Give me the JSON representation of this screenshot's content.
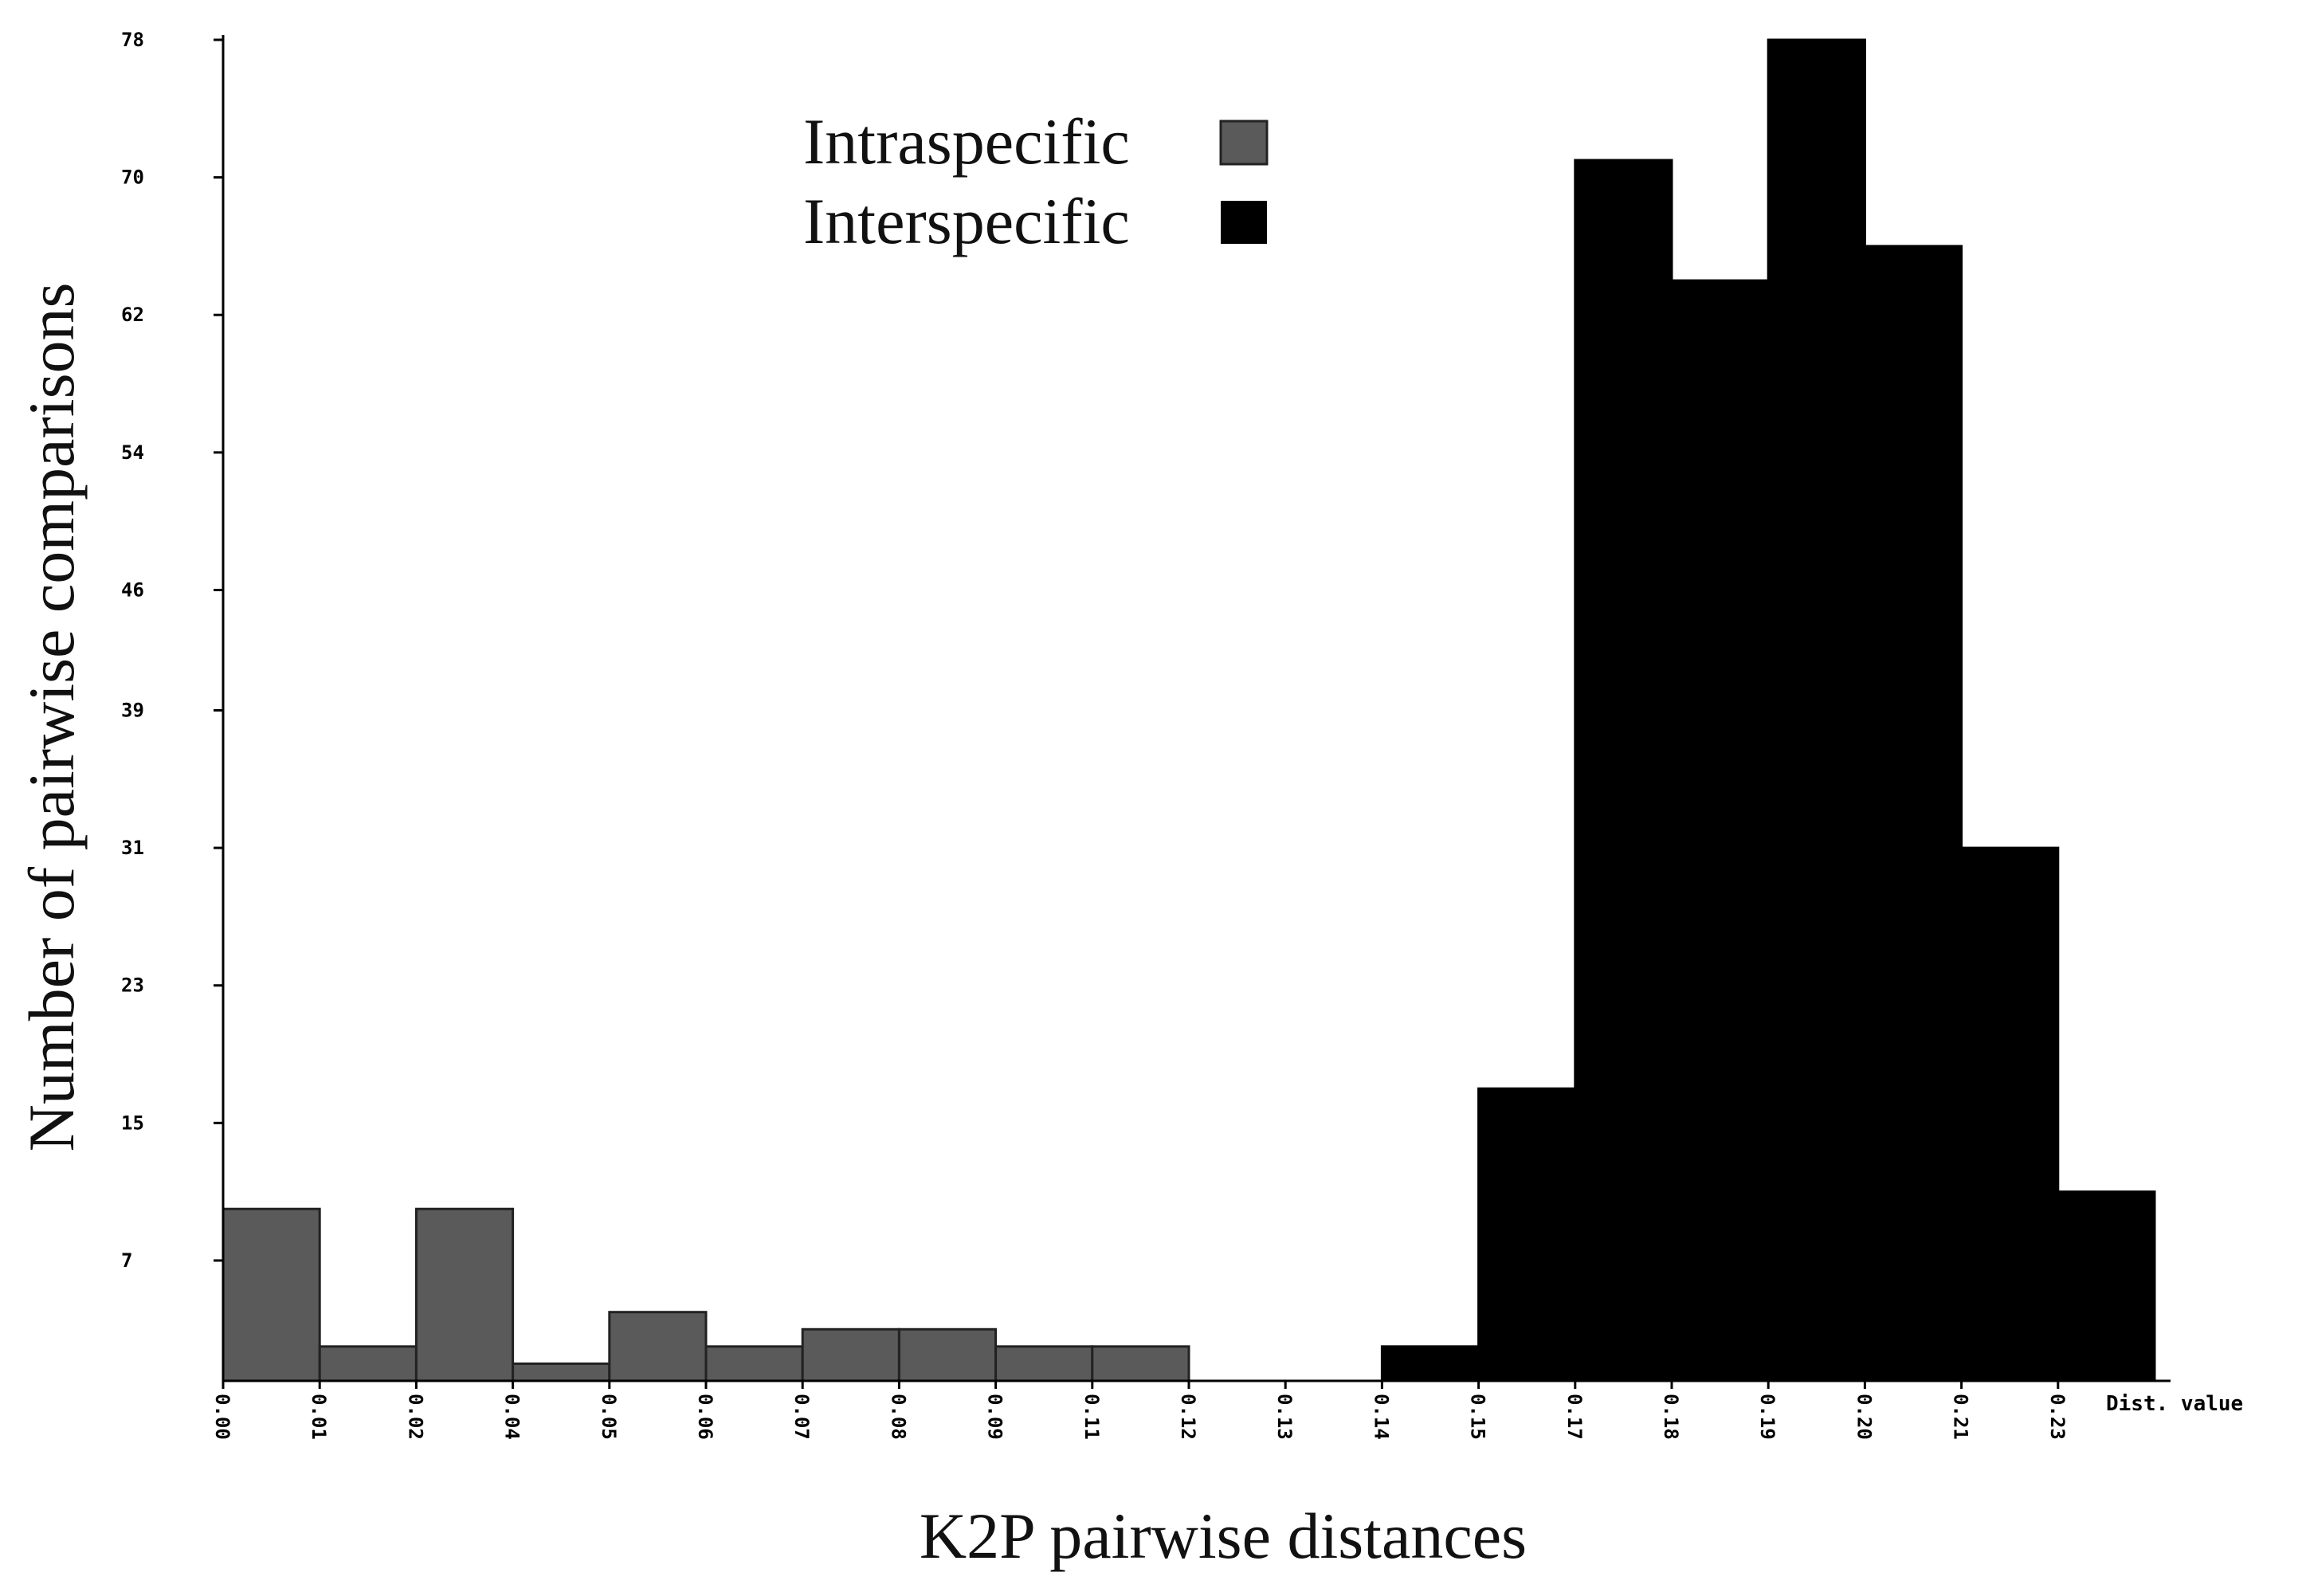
{
  "chart_data": {
    "type": "bar",
    "title": "",
    "xlabel": "K2P pairwise distances",
    "ylabel": "Number of pairwise comparisons",
    "x_unit_label": "Dist. value",
    "ylim": [
      0,
      78
    ],
    "y_ticks": [
      "7",
      "15",
      "23",
      "31",
      "39",
      "46",
      "54",
      "62",
      "70",
      "78"
    ],
    "categories": [
      "0.00",
      "0.01",
      "0.02",
      "0.04",
      "0.05",
      "0.06",
      "0.07",
      "0.08",
      "0.09",
      "0.11",
      "0.12",
      "0.13",
      "0.14",
      "0.15",
      "0.17",
      "0.18",
      "0.19",
      "0.20",
      "0.21",
      "0.23"
    ],
    "series": [
      {
        "name": "Intraspecific",
        "color": "#5a5a5a",
        "values": [
          10,
          2,
          10,
          1,
          4,
          2,
          3,
          3,
          2,
          2,
          0,
          0,
          0,
          0,
          0,
          0,
          0,
          0,
          0,
          0
        ]
      },
      {
        "name": "Interspecific",
        "color": "#000000",
        "values": [
          0,
          0,
          0,
          0,
          0,
          0,
          0,
          0,
          0,
          0,
          0,
          0,
          2,
          17,
          71,
          64,
          78,
          66,
          31,
          11
        ]
      }
    ],
    "legend_position": "top-center",
    "grid": false
  }
}
